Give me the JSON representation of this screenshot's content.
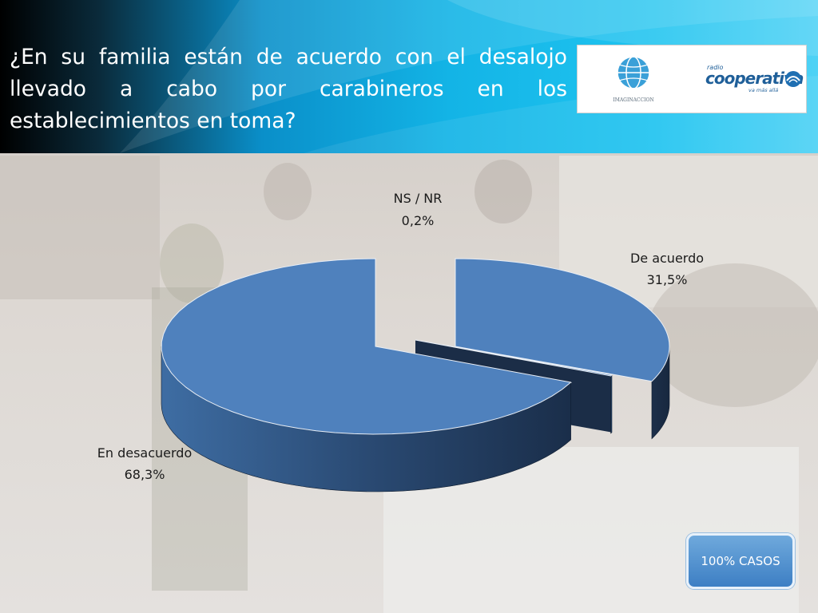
{
  "header": {
    "title": "¿En su familia están de acuerdo con el desalojo llevado a cabo por carabineros en los establecimientos en toma?",
    "logos": {
      "left_logo_text": "IMAGINACCION",
      "right_logo_small": "radio",
      "right_logo_main": "cooperativa",
      "right_logo_tagline": "va más allá"
    }
  },
  "badge": {
    "label": "100% CASOS"
  },
  "colors": {
    "slice_top": "#4f81bd",
    "slice_side": "#1f3350",
    "header_accent": "#13b4e6",
    "badge": "#4a8cd0"
  },
  "chart_data": {
    "type": "pie",
    "style": "3d-exploded",
    "title": "",
    "slices": [
      {
        "label": "De acuerdo",
        "value": 31.5,
        "display": "31,5%"
      },
      {
        "label": "NS / NR",
        "value": 0.2,
        "display": "0,2%"
      },
      {
        "label": "En desacuerdo",
        "value": 68.3,
        "display": "68,3%"
      }
    ]
  }
}
